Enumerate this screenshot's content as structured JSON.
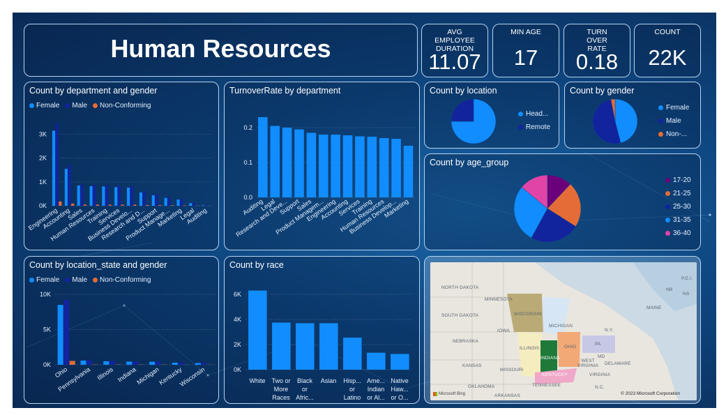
{
  "header": {
    "title": "Human Resources"
  },
  "kpis": [
    {
      "label": "AVG EMPLOYEE DURATION",
      "value": "11.07"
    },
    {
      "label": "MIN AGE",
      "value": "17"
    },
    {
      "label": "TURN OVER RATE",
      "value": "0.18"
    },
    {
      "label": "COUNT",
      "value": "22K"
    }
  ],
  "colors": {
    "female": "#118dff",
    "male": "#12239e",
    "nonconf": "#e66c37",
    "bar": "#118dff"
  },
  "map": {
    "labels": [
      "NORTH DAKOTA",
      "MINNESOTA",
      "SOUTH DAKOTA",
      "WISCONSIN",
      "MICHIGAN",
      "IOWA",
      "NEBRASKA",
      "ILLINOIS",
      "INDIANA",
      "OHIO",
      "PA",
      "KANSAS",
      "MISSOURI",
      "KENTUCKY",
      "WEST VIRGINIA",
      "VIRGINIA",
      "TENNESSEE",
      "OKLAHOMA",
      "ARKANSAS",
      "N.C.",
      "MAINE",
      "N.Y.",
      "DELAWARE",
      "MD",
      "NB",
      "NS",
      "P.E.I."
    ],
    "copyright": "© 2023 Microsoft Corporation",
    "brand": "Microsoft Bing"
  },
  "chart_data": [
    {
      "id": "dept_gender",
      "type": "bar",
      "title": "Count by department and gender",
      "legend": [
        "Female",
        "Male",
        "Non-Conforming"
      ],
      "categories": [
        "Engineering",
        "Accounting",
        "Sales",
        "Human Resources",
        "Training",
        "Services",
        "Business Develo...",
        "Research and D...",
        "Support",
        "Product Manage...",
        "Marketing",
        "Legal",
        "Auditing"
      ],
      "series": [
        {
          "name": "Female",
          "values": [
            3150,
            1550,
            850,
            820,
            810,
            780,
            760,
            560,
            440,
            330,
            260,
            110,
            20
          ]
        },
        {
          "name": "Male",
          "values": [
            3450,
            1720,
            900,
            880,
            870,
            840,
            830,
            600,
            480,
            360,
            280,
            120,
            25
          ]
        },
        {
          "name": "Non-Conforming",
          "values": [
            180,
            90,
            50,
            45,
            45,
            45,
            45,
            30,
            25,
            20,
            15,
            8,
            3
          ]
        }
      ],
      "yticks": [
        "0K",
        "1K",
        "2K",
        "3K"
      ],
      "ylim": [
        0,
        3600
      ]
    },
    {
      "id": "turnover",
      "type": "bar",
      "title": "TurnoverRate by department",
      "categories": [
        "Auditing",
        "Legal",
        "Research and Deve...",
        "Support",
        "Sales",
        "Product Managem...",
        "Engineering",
        "Accounting",
        "Services",
        "Training",
        "Human Resources",
        "Business Develop...",
        "Marketing"
      ],
      "values": [
        0.23,
        0.205,
        0.2,
        0.195,
        0.185,
        0.18,
        0.18,
        0.178,
        0.175,
        0.174,
        0.17,
        0.168,
        0.148
      ],
      "yticks": [
        "0.0",
        "0.1",
        "0.2"
      ],
      "ylim": [
        0,
        0.25
      ]
    },
    {
      "id": "location",
      "type": "pie",
      "title": "Count by location",
      "labels": [
        "Head...",
        "Remote"
      ],
      "values": [
        75,
        25
      ],
      "colors": [
        "#118dff",
        "#12239e"
      ]
    },
    {
      "id": "gender",
      "type": "pie",
      "title": "Count by gender",
      "labels": [
        "Female",
        "Male",
        "Non-..."
      ],
      "values": [
        46,
        51,
        3
      ],
      "colors": [
        "#118dff",
        "#12239e",
        "#e66c37"
      ]
    },
    {
      "id": "age_group",
      "type": "pie",
      "title": "Count by age_group",
      "labels": [
        "17-20",
        "21-25",
        "25-30",
        "31-35",
        "36-40"
      ],
      "values": [
        12,
        22,
        24,
        28,
        14
      ],
      "colors": [
        "#6b007b",
        "#e66c37",
        "#12239e",
        "#118dff",
        "#e044a7"
      ]
    },
    {
      "id": "state_gender",
      "type": "bar",
      "title": "Count by location_state and gender",
      "legend": [
        "Female",
        "Male",
        "Non-Conforming"
      ],
      "categories": [
        "Ohio",
        "Pennsylvania",
        "Illinois",
        "Indiana",
        "Michigan",
        "Kentucky",
        "Wisconsin"
      ],
      "series": [
        {
          "name": "Female",
          "values": [
            8500,
            600,
            500,
            450,
            430,
            300,
            250
          ]
        },
        {
          "name": "Male",
          "values": [
            9200,
            650,
            550,
            480,
            460,
            320,
            270
          ]
        },
        {
          "name": "Non-Conforming",
          "values": [
            550,
            40,
            35,
            30,
            30,
            20,
            15
          ]
        }
      ],
      "yticks": [
        "0K",
        "5K",
        "10K"
      ],
      "ylim": [
        0,
        10000
      ]
    },
    {
      "id": "race",
      "type": "bar",
      "title": "Count by race",
      "categories": [
        "White",
        "Two or More Races",
        "Black or Afric...",
        "Asian",
        "Hisp... or Latino",
        "Ame... Indian or Al...",
        "Native Haw... or O..."
      ],
      "category_lines": [
        [
          "White"
        ],
        [
          "Two or",
          "More",
          "Races"
        ],
        [
          "Black",
          "or",
          "Afric..."
        ],
        [
          "Asian"
        ],
        [
          "Hisp...",
          "or",
          "Latino"
        ],
        [
          "Ame...",
          "Indian",
          "or Al..."
        ],
        [
          "Native",
          "Haw...",
          "or O..."
        ]
      ],
      "values": [
        6300,
        3750,
        3700,
        3700,
        2550,
        1350,
        1250
      ],
      "yticks": [
        "0K",
        "2K",
        "4K",
        "6K"
      ],
      "ylim": [
        0,
        7000
      ]
    }
  ]
}
